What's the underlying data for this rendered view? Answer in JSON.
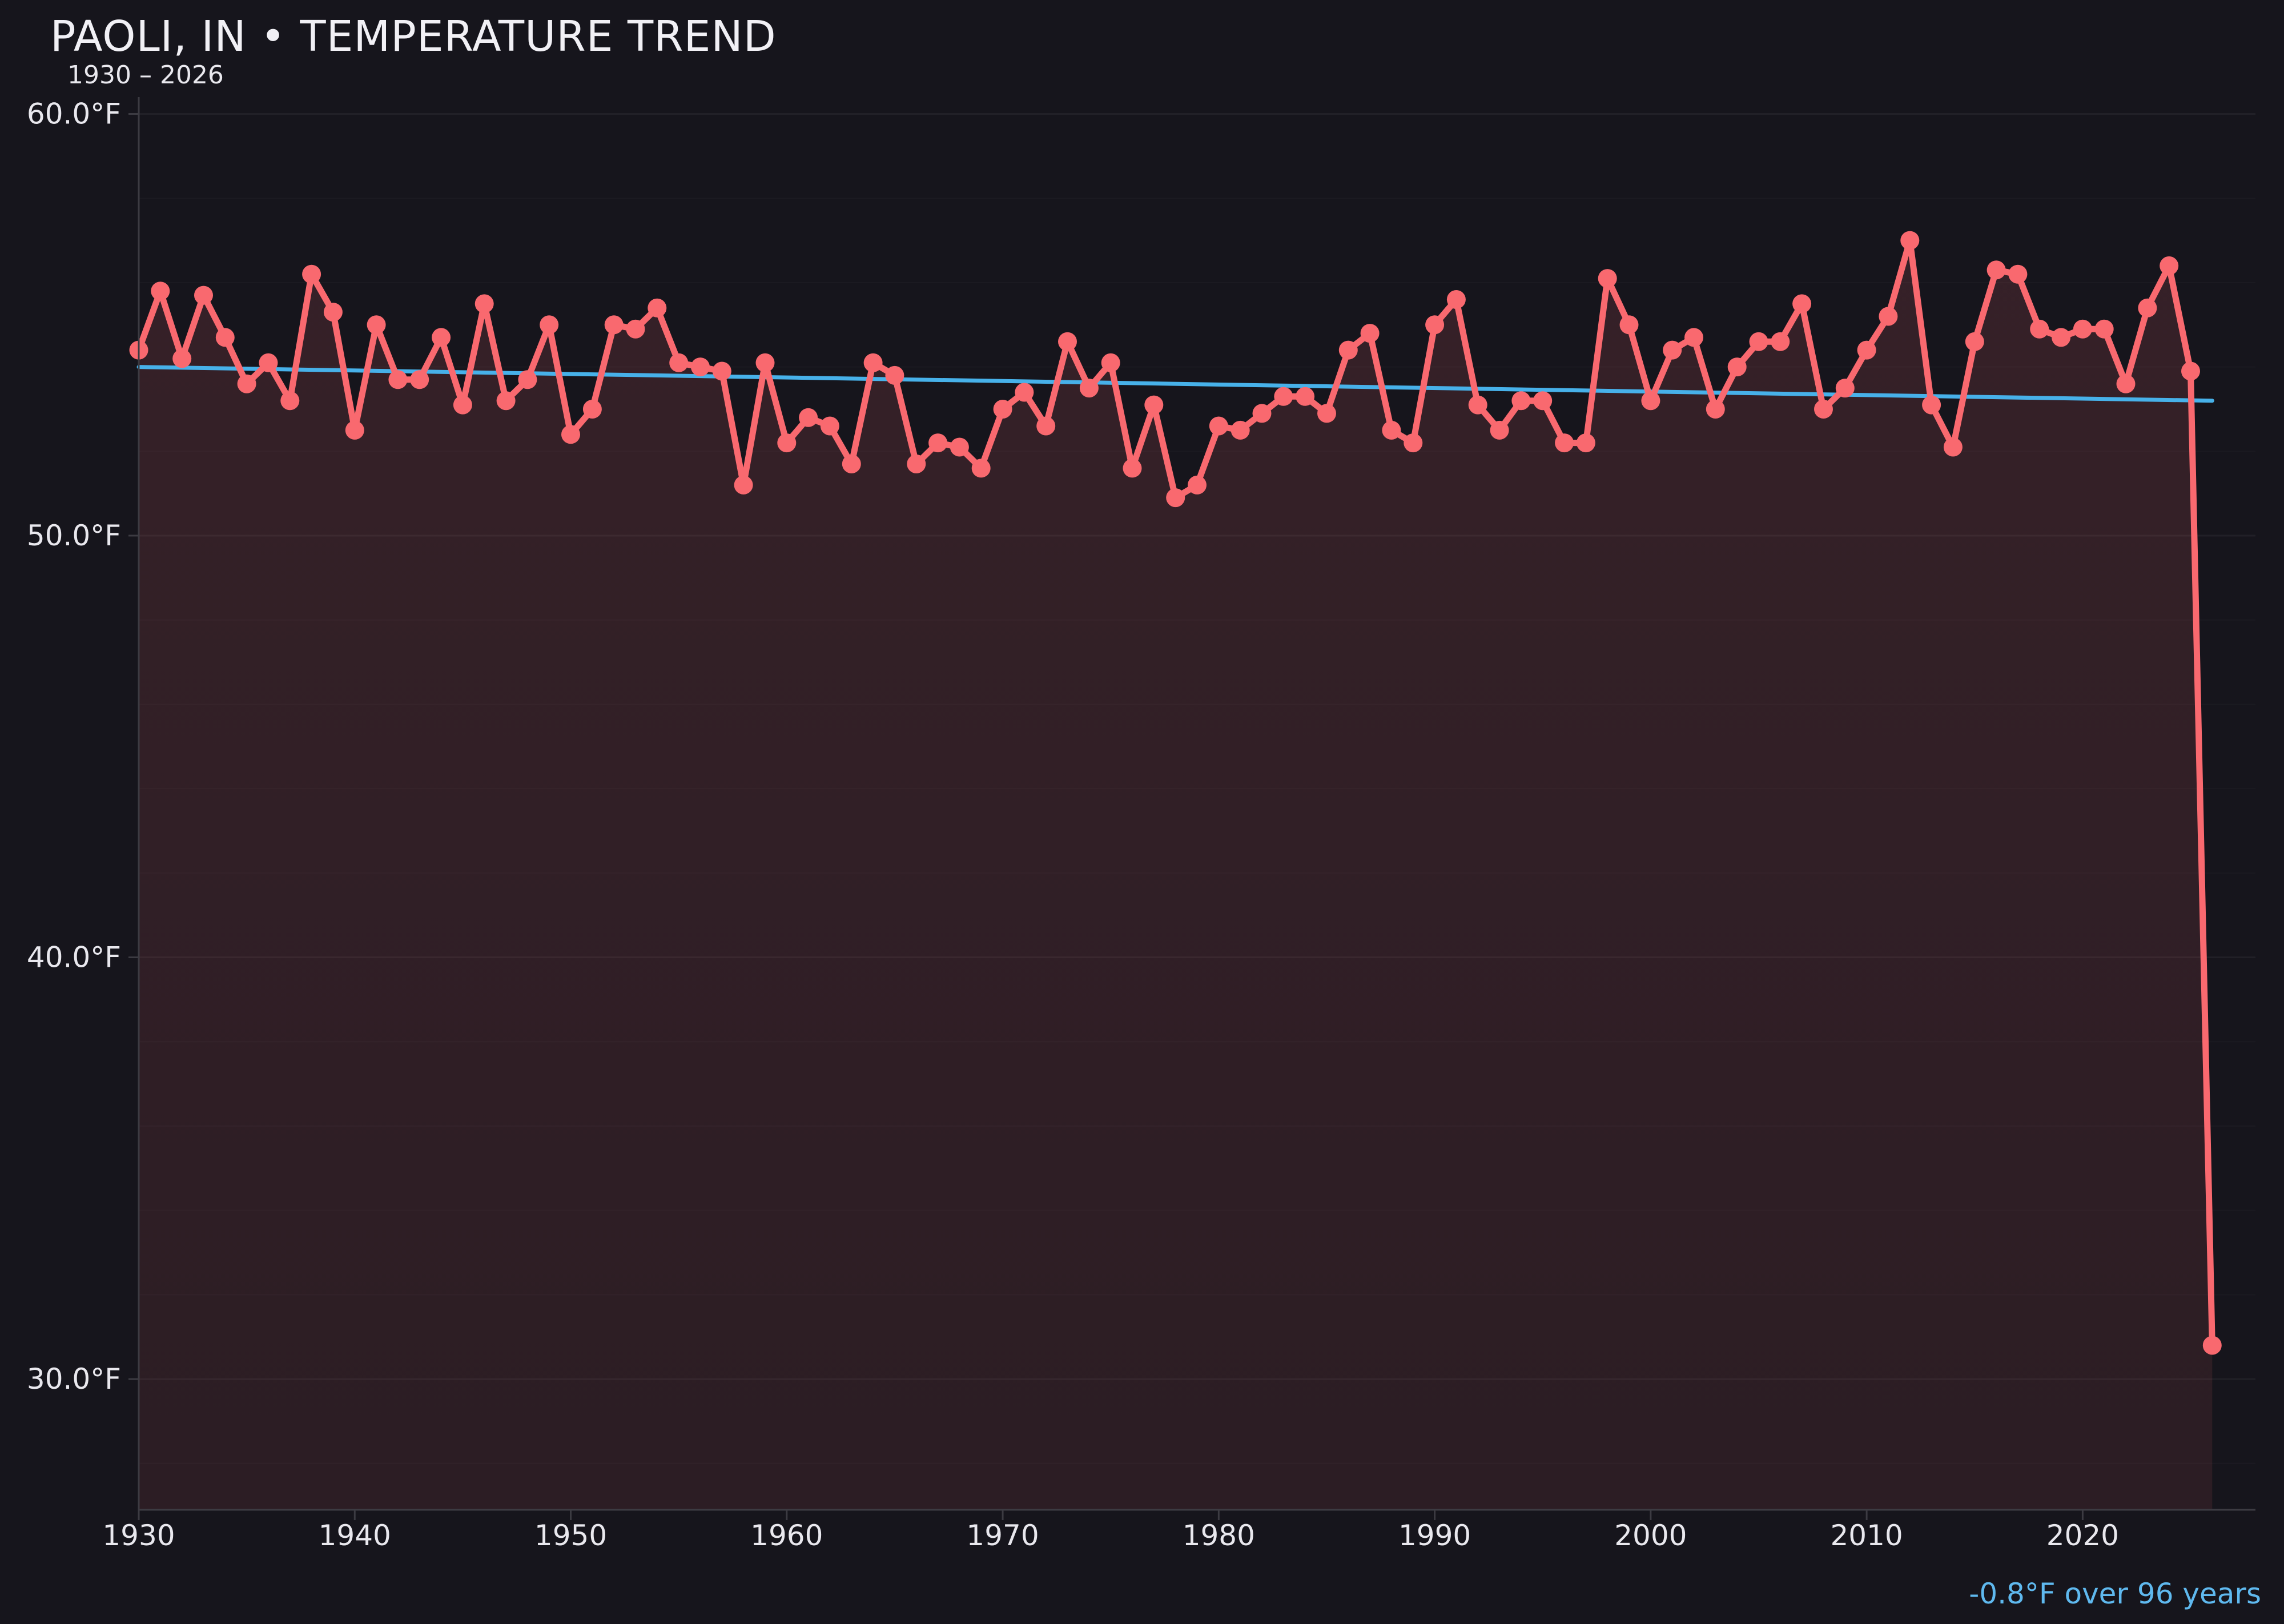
{
  "chart_data": {
    "type": "line",
    "title": "PAOLI, IN • TEMPERATURE TREND",
    "subtitle": "1930 – 2026",
    "xlabel": "",
    "ylabel": "",
    "x_start": 1930,
    "x_end": 2026,
    "xlim": [
      1930,
      2028
    ],
    "ylim": [
      26.9,
      60.4
    ],
    "grid": {
      "major_step_f": 10,
      "minor_step_f": 2,
      "vertical_gridlines": false
    },
    "legend": "none",
    "y_ticks": [
      60,
      50,
      40,
      30
    ],
    "y_tick_labels": [
      "60.0°F",
      "50.0°F",
      "40.0°F",
      "30.0°F"
    ],
    "x_ticks": [
      1930,
      1940,
      1950,
      1960,
      1970,
      1980,
      1990,
      2000,
      2010,
      2020
    ],
    "x_tick_labels": [
      "1930",
      "1940",
      "1950",
      "1960",
      "1970",
      "1980",
      "1990",
      "2000",
      "2010",
      "2020"
    ],
    "series": [
      {
        "name": "annual-mean-temperature",
        "values": [
          54.4,
          55.8,
          54.2,
          55.7,
          54.7,
          53.6,
          54.1,
          53.2,
          56.2,
          55.3,
          52.5,
          55.0,
          53.7,
          53.7,
          54.7,
          53.1,
          55.5,
          53.2,
          53.7,
          55.0,
          52.4,
          53.0,
          55.0,
          54.9,
          55.4,
          54.1,
          54.0,
          53.9,
          51.2,
          54.1,
          52.2,
          52.8,
          52.6,
          51.7,
          54.1,
          53.8,
          51.7,
          52.2,
          52.1,
          51.6,
          53.0,
          53.4,
          52.6,
          54.6,
          53.5,
          54.1,
          51.6,
          53.1,
          50.9,
          51.2,
          52.6,
          52.5,
          52.9,
          53.3,
          53.3,
          52.9,
          54.4,
          54.8,
          52.5,
          52.2,
          55.0,
          55.6,
          53.1,
          52.5,
          53.2,
          53.2,
          52.2,
          52.2,
          56.1,
          55.0,
          53.2,
          54.4,
          54.7,
          53.0,
          54.0,
          54.6,
          54.6,
          55.5,
          53.0,
          53.5,
          54.4,
          55.2,
          57.0,
          53.1,
          52.1,
          54.6,
          56.3,
          56.2,
          54.9,
          54.7,
          54.9,
          54.9,
          53.6,
          55.4,
          56.4,
          53.9,
          30.8
        ]
      }
    ],
    "trend": {
      "start_year": 1930,
      "end_year": 2026,
      "start_value": 54.0,
      "end_value": 53.2,
      "span_years": 96,
      "delta_f": -0.8,
      "delta_label": "-0.8°F over 96 years"
    },
    "colors": {
      "background": "#16151c",
      "line": "#f9696f",
      "marker": "#f9696f",
      "area_fill": "#f9696f",
      "area_opacity_top": 0.14,
      "area_opacity_bottom": 0.095,
      "trend_line": "#47b1e9",
      "annotation_text": "#5fb9ef",
      "tick_text": "#e9e8ee",
      "title_text": "#f1f0f5",
      "spine": "#3c3b42",
      "grid_major": "rgba(255,255,255,0.05)",
      "grid_minor": "rgba(255,255,255,0.022)"
    }
  }
}
